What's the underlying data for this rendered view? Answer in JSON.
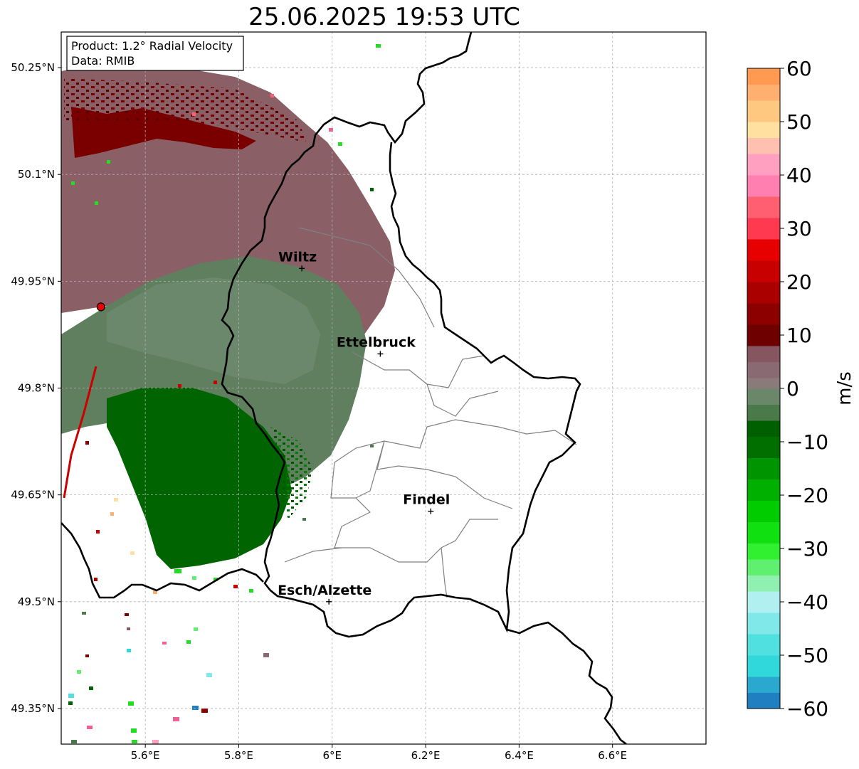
{
  "title": "25.06.2025 19:53 UTC",
  "info_box": {
    "product": "Product: 1.2° Radial Velocity",
    "data": "Data: RMIB"
  },
  "map": {
    "lon_range": [
      5.42,
      6.8
    ],
    "lat_range": [
      49.3,
      50.3
    ],
    "lon_ticks": [
      {
        "value": 5.6,
        "label": "5.6°E"
      },
      {
        "value": 5.8,
        "label": "5.8°E"
      },
      {
        "value": 6.0,
        "label": "6°E"
      },
      {
        "value": 6.2,
        "label": "6.2°E"
      },
      {
        "value": 6.4,
        "label": "6.4°E"
      },
      {
        "value": 6.6,
        "label": "6.6°E"
      }
    ],
    "lat_ticks": [
      {
        "value": 50.25,
        "label": "50.25°N"
      },
      {
        "value": 50.1,
        "label": "50.1°N"
      },
      {
        "value": 49.95,
        "label": "49.95°N"
      },
      {
        "value": 49.8,
        "label": "49.8°N"
      },
      {
        "value": 49.65,
        "label": "49.65°N"
      },
      {
        "value": 49.5,
        "label": "49.5°N"
      },
      {
        "value": 49.35,
        "label": "49.35°N"
      }
    ],
    "gridlines": true,
    "radar_site": {
      "lon": 5.505,
      "lat": 49.914
    },
    "cities": [
      {
        "name": "Wiltz",
        "lon": 5.935,
        "lat": 49.968
      },
      {
        "name": "Ettelbruck",
        "lon": 6.103,
        "lat": 49.848
      },
      {
        "name": "Findel",
        "lon": 6.211,
        "lat": 49.627
      },
      {
        "name": "Esch/Alzette",
        "lon": 5.993,
        "lat": 49.5
      }
    ],
    "colors": {
      "dark_red": "#7a0000",
      "maroon_gray": "#8a5f66",
      "gray_green": "#5f7f5f",
      "dark_green": "#006400",
      "bright_green": "#22dd22",
      "pink": "#f06090"
    }
  },
  "colorbar": {
    "label": "m/s",
    "range": [
      -60,
      60
    ],
    "ticks": [
      {
        "value": 60,
        "label": "60"
      },
      {
        "value": 50,
        "label": "50"
      },
      {
        "value": 40,
        "label": "40"
      },
      {
        "value": 30,
        "label": "30"
      },
      {
        "value": 20,
        "label": "20"
      },
      {
        "value": 10,
        "label": "10"
      },
      {
        "value": 0,
        "label": "0"
      },
      {
        "value": -10,
        "label": "−10"
      },
      {
        "value": -20,
        "label": "−20"
      },
      {
        "value": -30,
        "label": "−30"
      },
      {
        "value": -40,
        "label": "−40"
      },
      {
        "value": -50,
        "label": "−50"
      },
      {
        "value": -60,
        "label": "−60"
      }
    ],
    "bands": [
      {
        "from": -60,
        "to": -57,
        "color": "#1f7fc0"
      },
      {
        "from": -57,
        "to": -54,
        "color": "#2aa8d0"
      },
      {
        "from": -54,
        "to": -50,
        "color": "#30d8dc"
      },
      {
        "from": -50,
        "to": -46,
        "color": "#50e0e0"
      },
      {
        "from": -46,
        "to": -42,
        "color": "#80e8e8"
      },
      {
        "from": -42,
        "to": -38,
        "color": "#b0f0f0"
      },
      {
        "from": -38,
        "to": -35,
        "color": "#90f0b0"
      },
      {
        "from": -35,
        "to": -32,
        "color": "#60f070"
      },
      {
        "from": -32,
        "to": -29,
        "color": "#30f030"
      },
      {
        "from": -29,
        "to": -25,
        "color": "#10e010"
      },
      {
        "from": -25,
        "to": -21,
        "color": "#00cc00"
      },
      {
        "from": -21,
        "to": -17,
        "color": "#00b000"
      },
      {
        "from": -17,
        "to": -13,
        "color": "#009400"
      },
      {
        "from": -13,
        "to": -9,
        "color": "#006f00"
      },
      {
        "from": -9,
        "to": -6,
        "color": "#006000"
      },
      {
        "from": -6,
        "to": -3,
        "color": "#4a7a4a"
      },
      {
        "from": -3,
        "to": 0,
        "color": "#6a876a"
      },
      {
        "from": 0,
        "to": 2,
        "color": "#8a7a7a"
      },
      {
        "from": 2,
        "to": 5,
        "color": "#8a6a72"
      },
      {
        "from": 5,
        "to": 8,
        "color": "#855660"
      },
      {
        "from": 8,
        "to": 12,
        "color": "#6e0000"
      },
      {
        "from": 12,
        "to": 16,
        "color": "#8c0000"
      },
      {
        "from": 16,
        "to": 20,
        "color": "#aa0000"
      },
      {
        "from": 20,
        "to": 24,
        "color": "#c80000"
      },
      {
        "from": 24,
        "to": 28,
        "color": "#e60000"
      },
      {
        "from": 28,
        "to": 32,
        "color": "#ff3a50"
      },
      {
        "from": 32,
        "to": 36,
        "color": "#ff5f70"
      },
      {
        "from": 36,
        "to": 40,
        "color": "#ff80b0"
      },
      {
        "from": 40,
        "to": 44,
        "color": "#ffa0c0"
      },
      {
        "from": 44,
        "to": 47,
        "color": "#ffc0b0"
      },
      {
        "from": 47,
        "to": 50,
        "color": "#ffe0a0"
      },
      {
        "from": 50,
        "to": 54,
        "color": "#ffc880"
      },
      {
        "from": 54,
        "to": 57,
        "color": "#ffb070"
      },
      {
        "from": 57,
        "to": 60,
        "color": "#ff9a50"
      }
    ]
  }
}
